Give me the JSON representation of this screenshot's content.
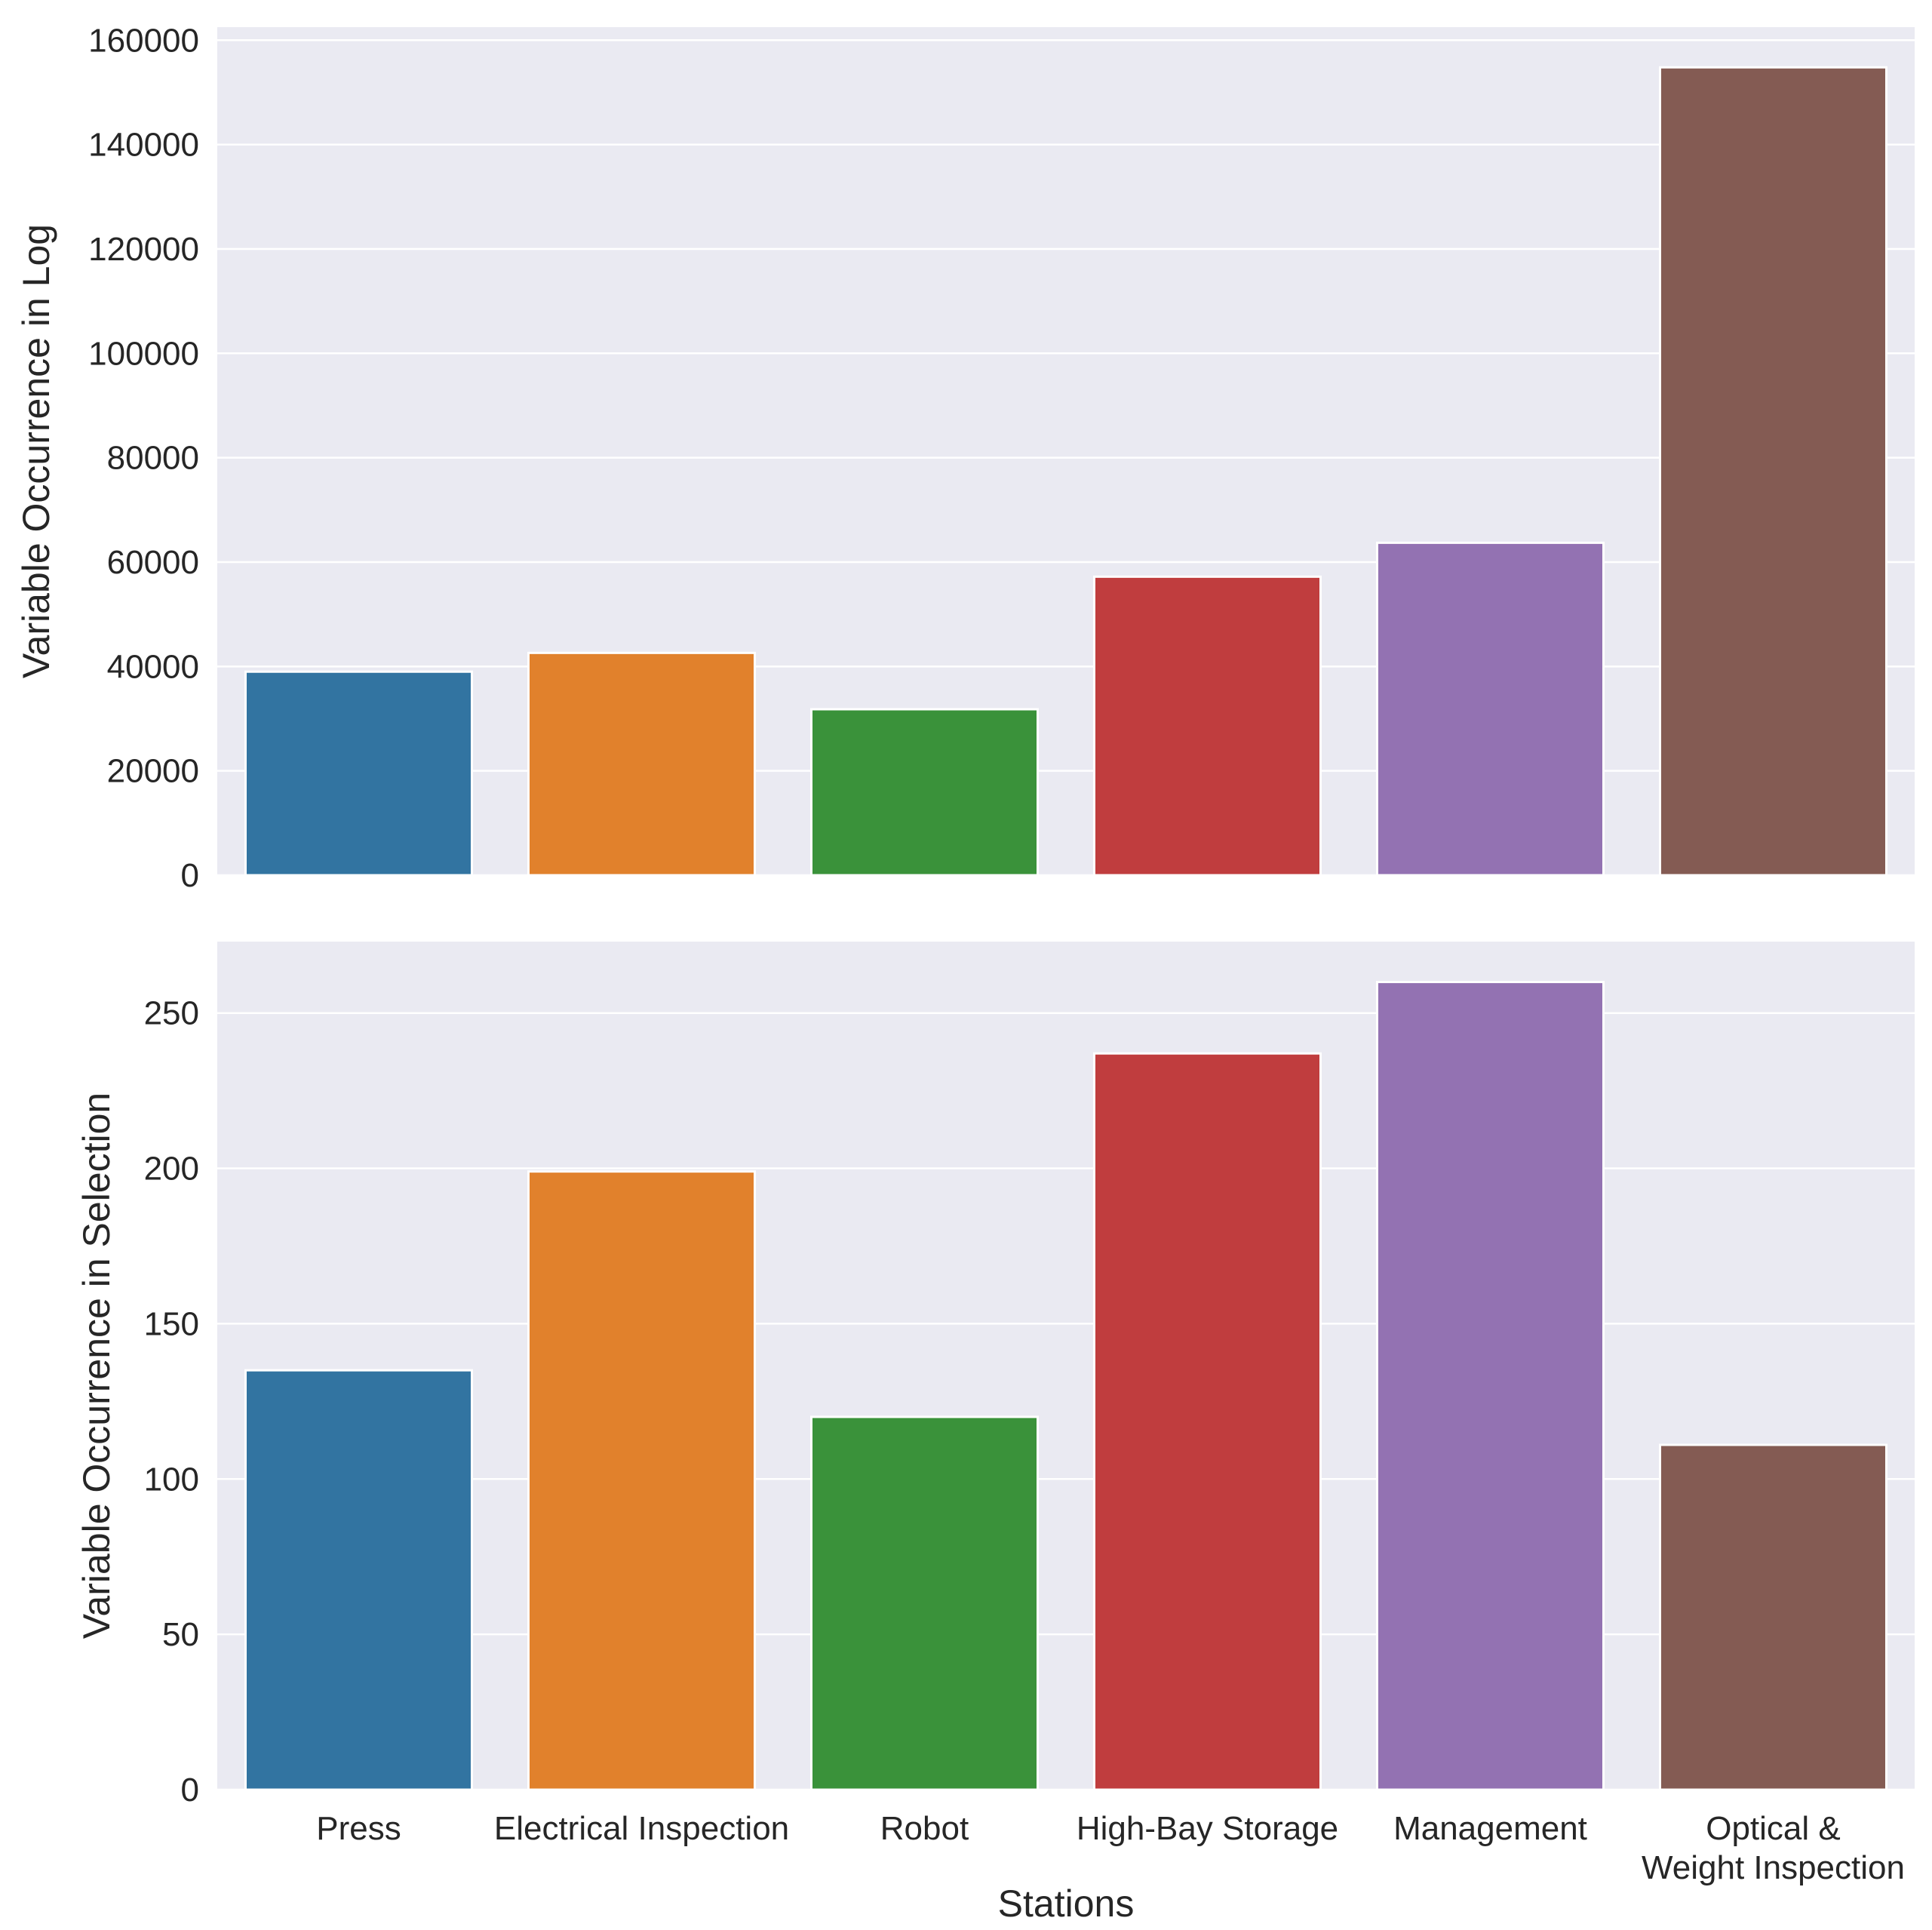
{
  "chart_data": [
    {
      "type": "bar",
      "title": "",
      "xlabel": "",
      "ylabel": "Variable Occurrence in Log",
      "ylim": [
        0,
        162500
      ],
      "yticks": [
        0,
        20000,
        40000,
        60000,
        80000,
        100000,
        120000,
        140000,
        160000
      ],
      "categories": [
        "Press",
        "Electrical Inspection",
        "Robot",
        "High-Bay Storage",
        "Management",
        "Optical & Weight Inspection"
      ],
      "values": [
        39000,
        42600,
        31800,
        57200,
        63700,
        154800
      ],
      "colors": [
        "#3274a1",
        "#e1812c",
        "#3a923a",
        "#c03d3e",
        "#9372b2",
        "#845b53"
      ],
      "grid": true,
      "show_xticklabels": false
    },
    {
      "type": "bar",
      "title": "",
      "xlabel": "Stations",
      "ylabel": "Variable Occurrence in Selection",
      "ylim": [
        0,
        273
      ],
      "yticks": [
        0,
        50,
        100,
        150,
        200,
        250
      ],
      "categories": [
        "Press",
        "Electrical Inspection",
        "Robot",
        "High-Bay Storage",
        "Management",
        "Optical & Weight Inspection"
      ],
      "tick_labels": [
        [
          "Press"
        ],
        [
          "Electrical Inspection"
        ],
        [
          "Robot"
        ],
        [
          "High-Bay Storage"
        ],
        [
          "Management"
        ],
        [
          "Optical &",
          "Weight Inspection"
        ]
      ],
      "values": [
        135,
        199,
        120,
        237,
        260,
        111
      ],
      "colors": [
        "#3274a1",
        "#e1812c",
        "#3a923a",
        "#c03d3e",
        "#9372b2",
        "#845b53"
      ],
      "grid": true,
      "show_xticklabels": true
    }
  ]
}
